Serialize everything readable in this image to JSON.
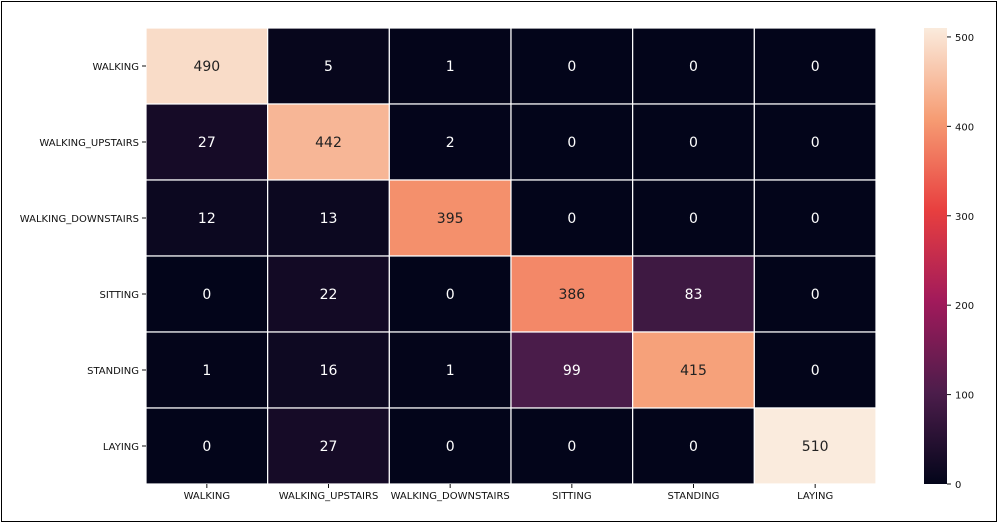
{
  "chart_data": {
    "type": "heatmap",
    "title": "",
    "xlabel": "",
    "ylabel": "",
    "x_categories": [
      "WALKING",
      "WALKING_UPSTAIRS",
      "WALKING_DOWNSTAIRS",
      "SITTING",
      "STANDING",
      "LAYING"
    ],
    "y_categories": [
      "WALKING",
      "WALKING_UPSTAIRS",
      "WALKING_DOWNSTAIRS",
      "SITTING",
      "STANDING",
      "LAYING"
    ],
    "values": [
      [
        490,
        5,
        1,
        0,
        0,
        0
      ],
      [
        27,
        442,
        2,
        0,
        0,
        0
      ],
      [
        12,
        13,
        395,
        0,
        0,
        0
      ],
      [
        0,
        22,
        0,
        386,
        83,
        0
      ],
      [
        1,
        16,
        1,
        99,
        415,
        0
      ],
      [
        0,
        27,
        0,
        0,
        0,
        510
      ]
    ],
    "colorbar": {
      "range": [
        0,
        510
      ],
      "ticks": [
        0,
        100,
        200,
        300,
        400,
        500
      ],
      "colormap": "rocket",
      "colors": [
        "#03051a",
        "#4c1d4b",
        "#a11a5b",
        "#e83f3f",
        "#f69c73",
        "#faebdd"
      ]
    },
    "grid_line_color": "#ffffff"
  }
}
